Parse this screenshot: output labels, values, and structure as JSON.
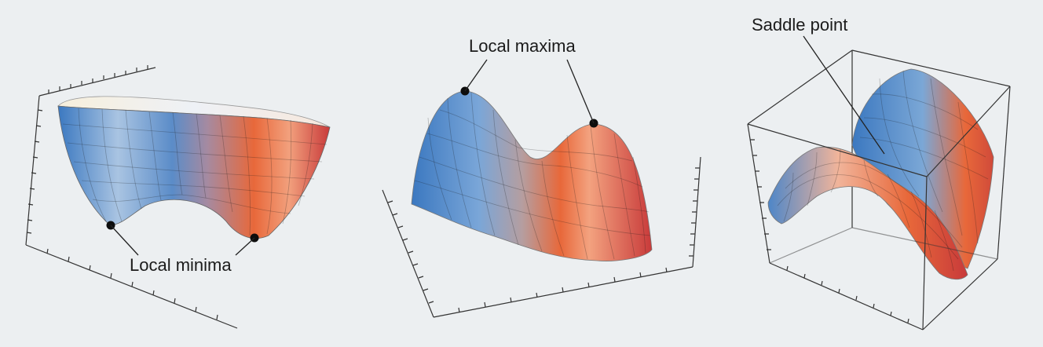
{
  "labels": {
    "minima": "Local minima",
    "maxima": "Local maxima",
    "saddle": "Saddle point"
  },
  "colors": {
    "background": "#eceff1",
    "blue": "#3b78c0",
    "light_blue": "#a9c4e2",
    "orange": "#e8683a",
    "red": "#c83a3a",
    "cream": "#f7efdc"
  },
  "icons": {
    "critical_point": "black-dot"
  }
}
